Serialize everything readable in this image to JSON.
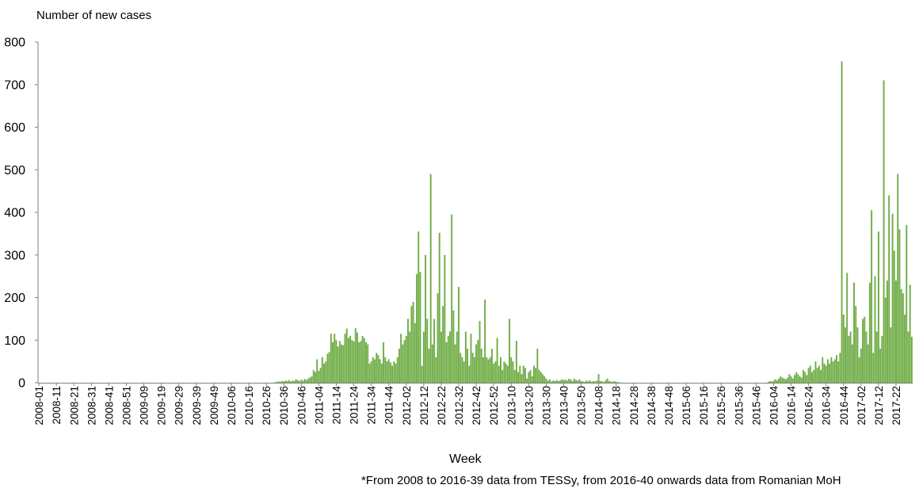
{
  "chart_data": {
    "type": "bar",
    "title": "",
    "ylabel": "Number of new cases",
    "xlabel": "Week",
    "footnote": "*From 2008 to 2016-39 data from TESSy,  from 2016-40 onwards data from Romanian MoH",
    "ylim": [
      0,
      800
    ],
    "yticks": [
      0,
      100,
      200,
      300,
      400,
      500,
      600,
      700,
      800
    ],
    "grid": false,
    "legend": "none",
    "bar_color": "#70ad47",
    "first_week": "2008-01",
    "label_every": 10,
    "ranges": [
      {
        "from": "2008-01",
        "to": "2010-30",
        "values": [
          0
        ]
      },
      {
        "from": "2010-31",
        "to": "2010-52",
        "values": [
          1,
          2,
          3,
          2,
          4,
          3,
          5,
          4,
          6,
          3,
          5,
          4,
          8,
          6,
          4,
          7,
          5,
          9,
          6,
          10,
          12,
          15
        ]
      },
      {
        "from": "2011-01",
        "to": "2011-52",
        "values": [
          30,
          25,
          55,
          28,
          35,
          60,
          45,
          50,
          68,
          72,
          115,
          95,
          115,
          100,
          85,
          98,
          90,
          88,
          115,
          127,
          105,
          110,
          100,
          97,
          128,
          118,
          95,
          98,
          110,
          105,
          95,
          90,
          45,
          50,
          60,
          55,
          70,
          65,
          55,
          45,
          95,
          60,
          50,
          55,
          48,
          40,
          50,
          45,
          60,
          80,
          115,
          90
        ]
      },
      {
        "from": "2012-01",
        "to": "2012-52",
        "values": [
          100,
          110,
          150,
          120,
          180,
          190,
          140,
          255,
          355,
          260,
          40,
          120,
          300,
          150,
          80,
          490,
          90,
          150,
          60,
          210,
          352,
          120,
          180,
          300,
          95,
          110,
          120,
          395,
          170,
          90,
          120,
          225,
          70,
          60,
          50,
          120,
          80,
          40,
          115,
          70,
          60,
          90,
          100,
          145,
          80,
          60,
          195,
          60,
          55,
          60,
          80,
          45
        ]
      },
      {
        "from": "2013-01",
        "to": "2013-52",
        "values": [
          50,
          105,
          40,
          60,
          30,
          50,
          45,
          40,
          150,
          60,
          50,
          30,
          98,
          25,
          40,
          20,
          40,
          35,
          10,
          25,
          30,
          15,
          40,
          35,
          80,
          30,
          25,
          20,
          15,
          10,
          5,
          8,
          3,
          5,
          4,
          6,
          4,
          5,
          8,
          6,
          7,
          5,
          9,
          8,
          4,
          10,
          6,
          5,
          8,
          4,
          3,
          2
        ]
      },
      {
        "from": "2014-01",
        "to": "2014-20",
        "values": [
          5,
          3,
          6,
          2,
          4,
          3,
          5,
          20,
          4,
          3,
          2,
          6,
          10,
          4,
          3,
          2,
          4,
          2,
          1,
          1
        ]
      },
      {
        "from": "2014-21",
        "to": "2015-52",
        "values": [
          0
        ]
      },
      {
        "from": "2016-01",
        "to": "2016-52",
        "values": [
          2,
          4,
          3,
          5,
          8,
          6,
          10,
          15,
          12,
          10,
          8,
          12,
          20,
          15,
          10,
          18,
          25,
          20,
          15,
          12,
          30,
          25,
          18,
          35,
          40,
          25,
          30,
          50,
          35,
          40,
          30,
          60,
          45,
          40,
          55,
          45,
          60,
          50,
          55,
          65,
          50,
          70,
          755,
          160,
          130,
          258,
          110,
          120,
          90,
          235,
          180,
          130
        ]
      },
      {
        "from": "2017-01",
        "to": "2017-31",
        "values": [
          60,
          80,
          150,
          155,
          120,
          90,
          235,
          405,
          70,
          250,
          120,
          355,
          80,
          110,
          710,
          200,
          240,
          440,
          130,
          397,
          310,
          240,
          490,
          360,
          220,
          210,
          160,
          370,
          120,
          230,
          108
        ]
      }
    ]
  }
}
